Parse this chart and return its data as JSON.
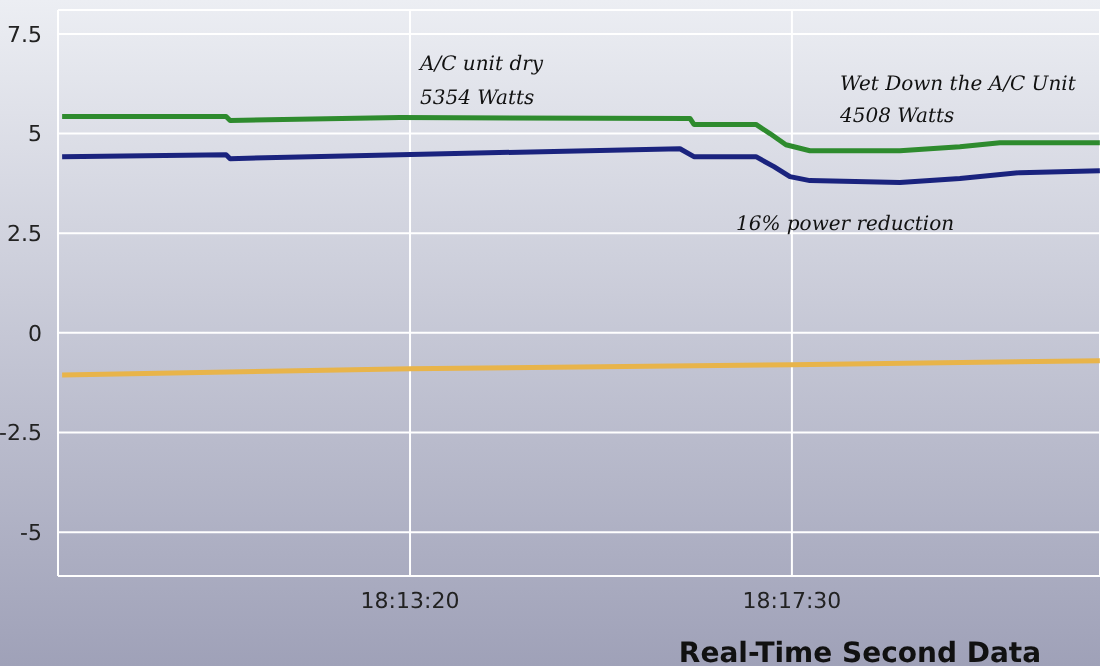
{
  "chart_data": {
    "type": "line",
    "xlabel": "Real-Time Second Data",
    "xlim": [
      18.1582,
      18.3477
    ],
    "xticks": [
      {
        "value": 18.22222,
        "label": "18:13:20"
      },
      {
        "value": 18.29167,
        "label": "18:17:30"
      }
    ],
    "ylim": [
      -6.1,
      8.1
    ],
    "yticks": [
      -5,
      -2.5,
      0,
      2.5,
      5,
      7.5
    ],
    "grid": true,
    "legend": false,
    "marker": "none",
    "line_style": "solid",
    "series": [
      {
        "color": "#2e8b2e",
        "x": [
          18.15895,
          18.18877,
          18.1895,
          18.2204,
          18.27313,
          18.27385,
          18.28513,
          18.28767,
          18.29058,
          18.29494,
          18.31131,
          18.32222,
          18.32949,
          18.34767
        ],
        "values": [
          5.43,
          5.43,
          5.33,
          5.4,
          5.38,
          5.23,
          5.23,
          5.0,
          4.72,
          4.57,
          4.57,
          4.67,
          4.77,
          4.77
        ]
      },
      {
        "color": "#1a237e",
        "x": [
          18.15895,
          18.18877,
          18.1895,
          18.2204,
          18.27131,
          18.27385,
          18.28513,
          18.2884,
          18.29131,
          18.29494,
          18.31131,
          18.32222,
          18.33313,
          18.34767
        ],
        "values": [
          4.42,
          4.47,
          4.37,
          4.47,
          4.62,
          4.42,
          4.42,
          4.17,
          3.92,
          3.82,
          3.77,
          3.87,
          4.02,
          4.07
        ]
      },
      {
        "color": "#e8b44a",
        "x": [
          18.15895,
          18.22222,
          18.29167,
          18.34767
        ],
        "values": [
          -1.06,
          -0.9,
          -0.8,
          -0.7
        ]
      }
    ],
    "annotations": [
      "A/C unit dry",
      "5354 Watts",
      "Wet Down the A/C Unit",
      "4508 Watts",
      "16% power reduction"
    ]
  }
}
